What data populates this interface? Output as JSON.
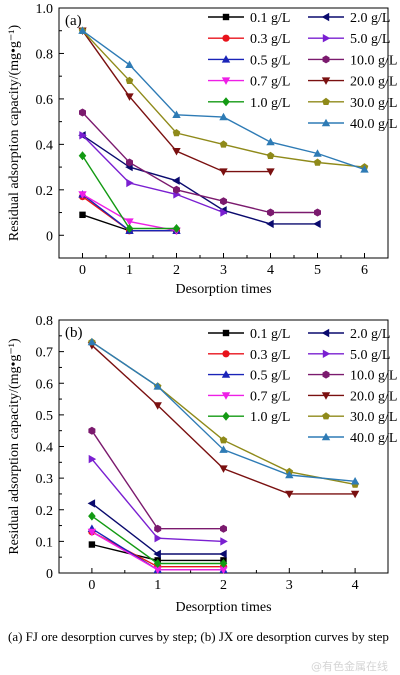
{
  "chart_data": [
    {
      "type": "line",
      "panel_label": "(a)",
      "xlabel": "Desorption times",
      "ylabel": "Residual adsorption capacity/(mg•g⁻¹)",
      "xlim": [
        -0.5,
        6.5
      ],
      "ylim": [
        -0.1,
        1.0
      ],
      "xticks": [
        "0",
        "1",
        "2",
        "3",
        "4",
        "5",
        "6"
      ],
      "yticks": [
        "0",
        "0.2",
        "0.4",
        "0.6",
        "0.8",
        "1.0"
      ],
      "legend_position": "top-right",
      "grid": false,
      "series": [
        {
          "name": "0.1 g/L",
          "color": "#000000",
          "marker": "square",
          "x": [
            0,
            1,
            2
          ],
          "y": [
            0.09,
            0.02,
            0.02
          ]
        },
        {
          "name": "0.3 g/L",
          "color": "#e8131b",
          "marker": "circle",
          "x": [
            0,
            1,
            2
          ],
          "y": [
            0.17,
            0.02,
            0.02
          ]
        },
        {
          "name": "0.5 g/L",
          "color": "#1a24b8",
          "marker": "triangle-up",
          "x": [
            0,
            1,
            2
          ],
          "y": [
            0.18,
            0.02,
            0.02
          ]
        },
        {
          "name": "0.7 g/L",
          "color": "#ee1fe6",
          "marker": "triangle-down",
          "x": [
            0,
            1,
            2
          ],
          "y": [
            0.18,
            0.06,
            0.02
          ]
        },
        {
          "name": "1.0 g/L",
          "color": "#139a13",
          "marker": "diamond",
          "x": [
            0,
            1,
            2
          ],
          "y": [
            0.35,
            0.03,
            0.03
          ]
        },
        {
          "name": "2.0 g/L",
          "color": "#0a0a6e",
          "marker": "triangle-left",
          "x": [
            0,
            1,
            2,
            3,
            4,
            5
          ],
          "y": [
            0.44,
            0.3,
            0.24,
            0.11,
            0.05,
            0.05
          ]
        },
        {
          "name": "5.0 g/L",
          "color": "#7a1fd1",
          "marker": "triangle-right",
          "x": [
            0,
            1,
            2,
            3
          ],
          "y": [
            0.44,
            0.23,
            0.18,
            0.1
          ]
        },
        {
          "name": "10.0 g/L",
          "color": "#7b1a6e",
          "marker": "hexagon",
          "x": [
            0,
            1,
            2,
            3,
            4,
            5
          ],
          "y": [
            0.54,
            0.32,
            0.2,
            0.15,
            0.1,
            0.1
          ]
        },
        {
          "name": "20.0 g/L",
          "color": "#7a1010",
          "marker": "triangle-down",
          "x": [
            0,
            1,
            2,
            3,
            4
          ],
          "y": [
            0.9,
            0.61,
            0.37,
            0.28,
            0.28
          ]
        },
        {
          "name": "30.0 g/L",
          "color": "#8f8a1a",
          "marker": "pentagon",
          "x": [
            0,
            1,
            2,
            3,
            4,
            5,
            6
          ],
          "y": [
            0.9,
            0.68,
            0.45,
            0.4,
            0.35,
            0.32,
            0.3
          ]
        },
        {
          "name": "40.0 g/L",
          "color": "#2e7bb5",
          "marker": "triangle-up",
          "x": [
            0,
            1,
            2,
            3,
            4,
            5,
            6
          ],
          "y": [
            0.9,
            0.75,
            0.53,
            0.52,
            0.41,
            0.36,
            0.29
          ]
        }
      ]
    },
    {
      "type": "line",
      "panel_label": "(b)",
      "xlabel": "Desorption times",
      "ylabel": "Residual adsorption capacity/(mg•g⁻¹)",
      "xlim": [
        -0.5,
        4.5
      ],
      "ylim": [
        0,
        0.8
      ],
      "xticks": [
        "0",
        "1",
        "2",
        "3",
        "4"
      ],
      "yticks": [
        "0",
        "0.1",
        "0.2",
        "0.3",
        "0.4",
        "0.5",
        "0.6",
        "0.7",
        "0.8"
      ],
      "legend_position": "top-right",
      "grid": false,
      "series": [
        {
          "name": "0.1 g/L",
          "color": "#000000",
          "marker": "square",
          "x": [
            0,
            1,
            2
          ],
          "y": [
            0.09,
            0.04,
            0.04
          ]
        },
        {
          "name": "0.3 g/L",
          "color": "#e8131b",
          "marker": "circle",
          "x": [
            0,
            1,
            2
          ],
          "y": [
            0.13,
            0.02,
            0.02
          ]
        },
        {
          "name": "0.5 g/L",
          "color": "#1a24b8",
          "marker": "triangle-up",
          "x": [
            0,
            1,
            2
          ],
          "y": [
            0.14,
            0.01,
            0.01
          ]
        },
        {
          "name": "0.7 g/L",
          "color": "#ee1fe6",
          "marker": "triangle-down",
          "x": [
            0,
            1,
            2
          ],
          "y": [
            0.13,
            0.01,
            0.01
          ]
        },
        {
          "name": "1.0 g/L",
          "color": "#139a13",
          "marker": "diamond",
          "x": [
            0,
            1,
            2
          ],
          "y": [
            0.18,
            0.03,
            0.03
          ]
        },
        {
          "name": "2.0 g/L",
          "color": "#0a0a6e",
          "marker": "triangle-left",
          "x": [
            0,
            1,
            2
          ],
          "y": [
            0.22,
            0.06,
            0.06
          ]
        },
        {
          "name": "5.0 g/L",
          "color": "#7a1fd1",
          "marker": "triangle-right",
          "x": [
            0,
            1,
            2
          ],
          "y": [
            0.36,
            0.11,
            0.1
          ]
        },
        {
          "name": "10.0 g/L",
          "color": "#7b1a6e",
          "marker": "hexagon",
          "x": [
            0,
            1,
            2
          ],
          "y": [
            0.45,
            0.14,
            0.14
          ]
        },
        {
          "name": "20.0 g/L",
          "color": "#7a1010",
          "marker": "triangle-down",
          "x": [
            0,
            1,
            2,
            3,
            4
          ],
          "y": [
            0.72,
            0.53,
            0.33,
            0.25,
            0.25
          ]
        },
        {
          "name": "30.0 g/L",
          "color": "#8f8a1a",
          "marker": "pentagon",
          "x": [
            0,
            1,
            2,
            3,
            4
          ],
          "y": [
            0.73,
            0.59,
            0.42,
            0.32,
            0.28
          ]
        },
        {
          "name": "40.0 g/L",
          "color": "#2e7bb5",
          "marker": "triangle-up",
          "x": [
            0,
            1,
            2,
            3,
            4
          ],
          "y": [
            0.73,
            0.59,
            0.39,
            0.31,
            0.29
          ]
        }
      ]
    }
  ],
  "caption": "(a) FJ ore desorption curves by step; (b) JX ore desorption curves by step",
  "watermark": "@有色金属在线"
}
